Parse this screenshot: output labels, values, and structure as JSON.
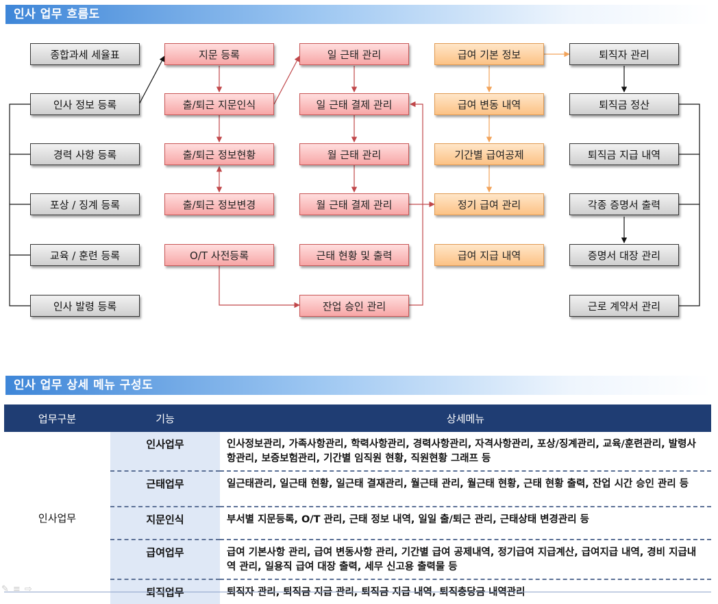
{
  "section1_title": "인사 업무 흐름도",
  "section2_title": "인사 업무 상세 메뉴 구성도",
  "flow": {
    "col_hr": [
      "종합과세 세율표",
      "인사 정보 등록",
      "경력 사항 등록",
      "포상 / 징계 등록",
      "교육 / 훈련 등록",
      "인사 발령 등록"
    ],
    "col_fingerprint": [
      "지문 등록",
      "출/퇴근 지문인식",
      "출/퇴근 정보현황",
      "출/퇴근 정보변경",
      "O/T 사전등록"
    ],
    "col_attendance": [
      "일 근태 관리",
      "일 근태 결제 관리",
      "월 근태 관리",
      "월 근태 결제 관리",
      "근태 현황 및 출력",
      "잔업 승인 관리"
    ],
    "col_payroll": [
      "급여 기본 정보",
      "급여 변동 내역",
      "기간별 급여공제",
      "정기 급여 관리",
      "급여 지급 내역"
    ],
    "col_retire": [
      "퇴직자 관리",
      "퇴직금 정산",
      "퇴직금 지급 내역",
      "각종 증명서 출력",
      "증명서 대장 관리",
      "근로 계약서 관리"
    ]
  },
  "table": {
    "headers": [
      "업무구분",
      "기능",
      "상세메뉴"
    ],
    "category": "인사업무",
    "rows": [
      {
        "func": "인사업무",
        "detail": "인사정보관리, 가족사항관리, 학력사항관리, 경력사항관리, 자격사항관리, 포상/징계관리, 교육/훈련관리, 발령사항관리, 보증보험관리, 기간별 임직원 현황, 직원현황 그래프 등"
      },
      {
        "func": "근태업무",
        "detail": "일근태관리, 일근태 현황, 일근태 결재관리, 월근태 관리, 월근태 현황, 근태 현황 출력, 잔업 시간 승인 관리 등"
      },
      {
        "func": "지문인식",
        "detail": "부서별 지문등록, O/T 관리, 근태 정보 내역, 일일 출/퇴근 관리, 근태상태 변경관리 등"
      },
      {
        "func": "급여업무",
        "detail": "급여 기본사항 관리, 급여 변동사항 관리, 기간별 급여 공제내역, 정기급여 지급계산, 급여지급 내역, 경비 지급내역 관리, 일용직 급여 대장 출력, 세무 신고용 출력물 등"
      },
      {
        "func": "퇴직업무",
        "detail": "퇴직자 관리, 퇴직금 지급 관리, 퇴직금 지급 내역, 퇴직충당금 내역관리"
      }
    ]
  }
}
